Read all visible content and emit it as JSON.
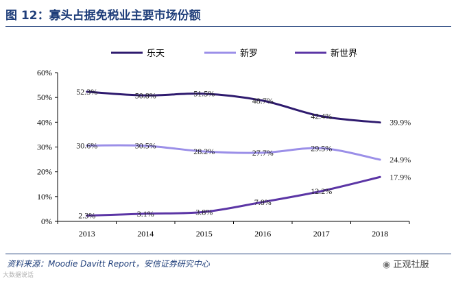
{
  "title": "图 12：寡头占据免税业主要市场份额",
  "source": "资料来源：Moodie Davitt Report，安信证券研究中心",
  "brand": "正观社服",
  "watermark": "大数据说话",
  "colors": {
    "title": "#1f3e7a",
    "lotte": "#2e1a6e",
    "shilla": "#9b8fe8",
    "shinsegae": "#5b35a5",
    "axis": "#000000"
  },
  "chart_data": {
    "type": "line",
    "categories": [
      "2013",
      "2014",
      "2015",
      "2016",
      "2017",
      "2018"
    ],
    "ylim": [
      0,
      60
    ],
    "yticks": [
      0,
      10,
      20,
      30,
      40,
      50,
      60
    ],
    "ytick_labels": [
      "0%",
      "10%",
      "20%",
      "30%",
      "40%",
      "50%",
      "60%"
    ],
    "legend_position": "top",
    "series": [
      {
        "name": "乐天",
        "key": "lotte",
        "values": [
          52.3,
          50.8,
          51.5,
          48.7,
          42.4,
          39.9
        ],
        "labels": [
          "52.3%",
          "50.8%",
          "51.5%",
          "48.7%",
          "42.4%",
          "39.9%"
        ]
      },
      {
        "name": "新罗",
        "key": "shilla",
        "values": [
          30.6,
          30.5,
          28.2,
          27.7,
          29.5,
          24.9
        ],
        "labels": [
          "30.6%",
          "30.5%",
          "28.2%",
          "27.7%",
          "29.5%",
          "24.9%"
        ]
      },
      {
        "name": "新世界",
        "key": "shinsegae",
        "values": [
          2.3,
          3.1,
          3.8,
          7.8,
          12.2,
          17.9
        ],
        "labels": [
          "2.3%",
          "3.1%",
          "3.8%",
          "7.8%",
          "12.2%",
          "17.9%"
        ]
      }
    ]
  }
}
